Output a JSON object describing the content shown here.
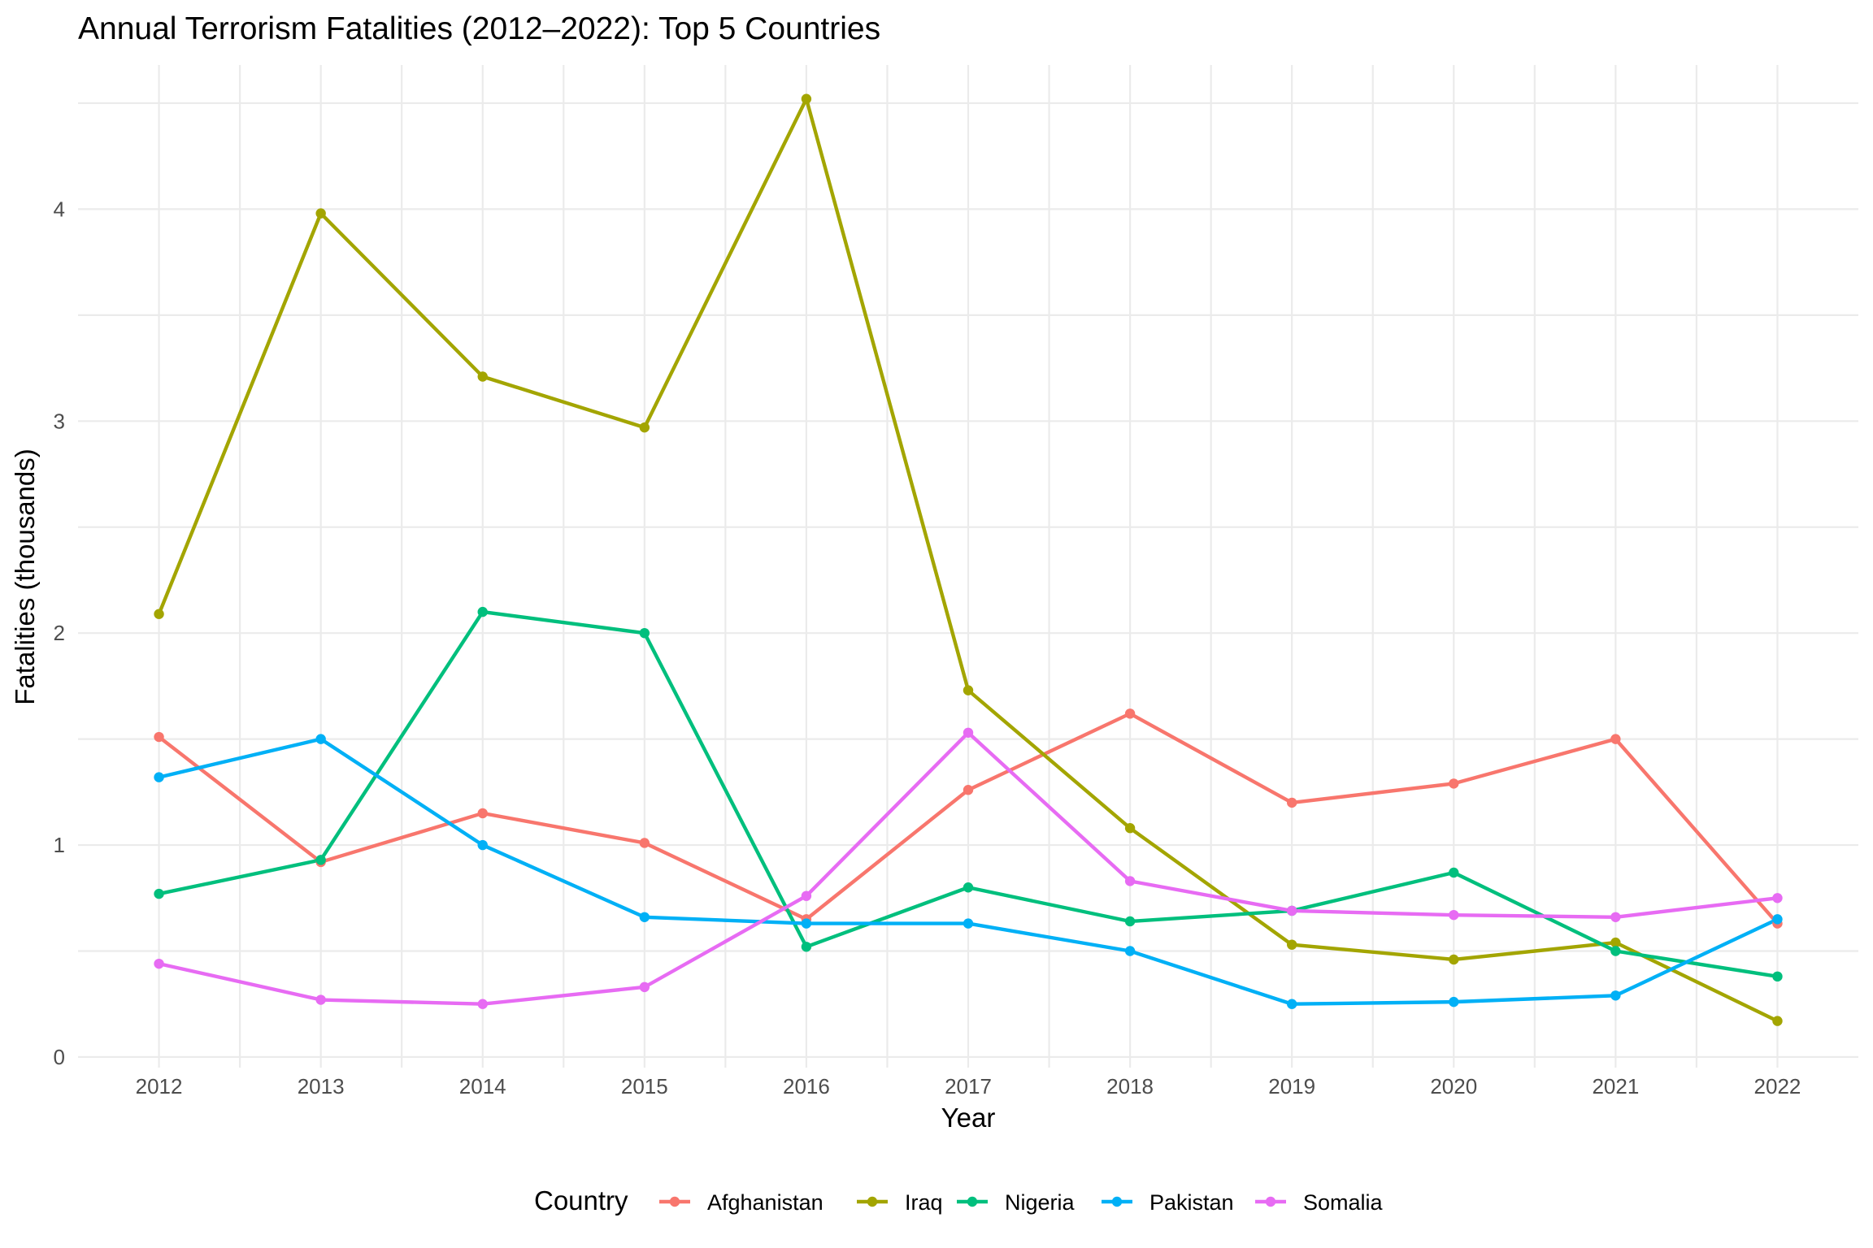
{
  "chart_data": {
    "type": "line",
    "title": "Annual Terrorism Fatalities (2012–2022): Top 5 Countries",
    "xlabel": "Year",
    "ylabel": "Fatalities (thousands)",
    "x": [
      2012,
      2013,
      2014,
      2015,
      2016,
      2017,
      2018,
      2019,
      2020,
      2021,
      2022
    ],
    "x_tick_labels": [
      "2012",
      "2013",
      "2014",
      "2015",
      "2016",
      "2017",
      "2018",
      "2019",
      "2020",
      "2021",
      "2022"
    ],
    "xlim": [
      2011.5,
      2022.5
    ],
    "ylim": [
      -0.05,
      4.68
    ],
    "y_ticks": [
      0,
      1,
      2,
      3,
      4
    ],
    "y_tick_labels": [
      "0",
      "1",
      "2",
      "3",
      "4"
    ],
    "grid": true,
    "legend": {
      "title": "Country",
      "position": "bottom"
    },
    "series": [
      {
        "name": "Afghanistan",
        "color": "#F8766D",
        "values": [
          1.51,
          0.92,
          1.15,
          1.01,
          0.65,
          1.26,
          1.62,
          1.2,
          1.29,
          1.5,
          0.63
        ]
      },
      {
        "name": "Iraq",
        "color": "#A3A500",
        "values": [
          2.09,
          3.98,
          3.21,
          2.97,
          4.52,
          1.73,
          1.08,
          0.53,
          0.46,
          0.54,
          0.17
        ]
      },
      {
        "name": "Nigeria",
        "color": "#00BF7D",
        "values": [
          0.77,
          0.93,
          2.1,
          2.0,
          0.52,
          0.8,
          0.64,
          0.69,
          0.87,
          0.5,
          0.38
        ]
      },
      {
        "name": "Pakistan",
        "color": "#00B0F6",
        "values": [
          1.32,
          1.5,
          1.0,
          0.66,
          0.63,
          0.63,
          0.5,
          0.25,
          0.26,
          0.29,
          0.65
        ]
      },
      {
        "name": "Somalia",
        "color": "#E76BF3",
        "values": [
          0.44,
          0.27,
          0.25,
          0.33,
          0.76,
          1.53,
          0.83,
          0.69,
          0.67,
          0.66,
          0.75
        ]
      }
    ]
  }
}
